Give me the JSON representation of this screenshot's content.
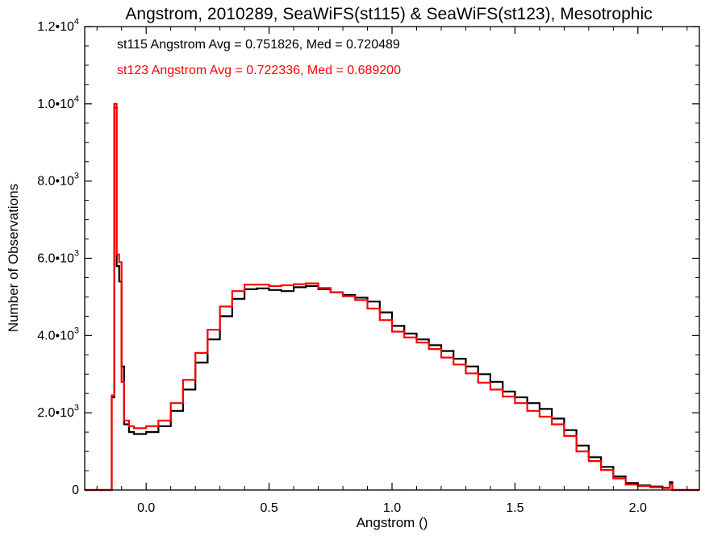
{
  "chart_data": {
    "type": "line",
    "step": true,
    "title": "Angstrom, 2010289, SeaWiFS(st115) & SeaWiFS(st123), Mesotrophic",
    "xlabel": "Angstrom ()",
    "ylabel": "Number of Observations",
    "xlim": [
      -0.25,
      2.25
    ],
    "ylim": [
      0,
      12000
    ],
    "grid": false,
    "x_ticks": [
      {
        "value": 0.0,
        "label": "0.0"
      },
      {
        "value": 0.5,
        "label": "0.5"
      },
      {
        "value": 1.0,
        "label": "1.0"
      },
      {
        "value": 1.5,
        "label": "1.5"
      },
      {
        "value": 2.0,
        "label": "2.0"
      }
    ],
    "y_ticks": [
      {
        "value": 0,
        "mantissa": "0",
        "exp": ""
      },
      {
        "value": 2000,
        "mantissa": "2.0•10",
        "exp": "3"
      },
      {
        "value": 4000,
        "mantissa": "4.0•10",
        "exp": "3"
      },
      {
        "value": 6000,
        "mantissa": "6.0•10",
        "exp": "3"
      },
      {
        "value": 8000,
        "mantissa": "8.0•10",
        "exp": "3"
      },
      {
        "value": 10000,
        "mantissa": "1.0•10",
        "exp": "4"
      },
      {
        "value": 12000,
        "mantissa": "1.2•10",
        "exp": "4"
      }
    ],
    "annotations": [
      {
        "text": "st115 Angstrom Avg = 0.751826, Med = 0.720489",
        "color": "#000000"
      },
      {
        "text": "st123 Angstrom Avg = 0.722336, Med = 0.689200",
        "color": "#ff0000"
      }
    ],
    "series": [
      {
        "color": "#000000",
        "points": [
          [
            -0.25,
            0
          ],
          [
            -0.15,
            0
          ],
          [
            -0.14,
            2400
          ],
          [
            -0.13,
            9900
          ],
          [
            -0.12,
            5800
          ],
          [
            -0.11,
            5400
          ],
          [
            -0.1,
            3200
          ],
          [
            -0.09,
            1700
          ],
          [
            -0.07,
            1500
          ],
          [
            -0.05,
            1450
          ],
          [
            0.0,
            1500
          ],
          [
            0.05,
            1650
          ],
          [
            0.1,
            2050
          ],
          [
            0.15,
            2600
          ],
          [
            0.2,
            3300
          ],
          [
            0.25,
            3900
          ],
          [
            0.3,
            4500
          ],
          [
            0.35,
            4950
          ],
          [
            0.4,
            5200
          ],
          [
            0.45,
            5220
          ],
          [
            0.5,
            5180
          ],
          [
            0.55,
            5150
          ],
          [
            0.6,
            5250
          ],
          [
            0.65,
            5280
          ],
          [
            0.7,
            5200
          ],
          [
            0.75,
            5120
          ],
          [
            0.8,
            5050
          ],
          [
            0.85,
            4980
          ],
          [
            0.9,
            4880
          ],
          [
            0.95,
            4600
          ],
          [
            1.0,
            4250
          ],
          [
            1.05,
            4050
          ],
          [
            1.1,
            3900
          ],
          [
            1.15,
            3750
          ],
          [
            1.2,
            3600
          ],
          [
            1.25,
            3400
          ],
          [
            1.3,
            3200
          ],
          [
            1.35,
            3000
          ],
          [
            1.4,
            2800
          ],
          [
            1.45,
            2550
          ],
          [
            1.5,
            2400
          ],
          [
            1.55,
            2250
          ],
          [
            1.6,
            2100
          ],
          [
            1.65,
            1850
          ],
          [
            1.7,
            1550
          ],
          [
            1.75,
            1150
          ],
          [
            1.8,
            850
          ],
          [
            1.85,
            600
          ],
          [
            1.9,
            350
          ],
          [
            1.95,
            180
          ],
          [
            2.0,
            120
          ],
          [
            2.05,
            90
          ],
          [
            2.1,
            60
          ],
          [
            2.13,
            200
          ],
          [
            2.14,
            0
          ],
          [
            2.25,
            0
          ]
        ]
      },
      {
        "color": "#ff0000",
        "points": [
          [
            -0.25,
            0
          ],
          [
            -0.15,
            0
          ],
          [
            -0.14,
            2450
          ],
          [
            -0.13,
            10000
          ],
          [
            -0.12,
            6100
          ],
          [
            -0.11,
            5900
          ],
          [
            -0.1,
            2800
          ],
          [
            -0.09,
            1800
          ],
          [
            -0.07,
            1650
          ],
          [
            -0.05,
            1600
          ],
          [
            0.0,
            1650
          ],
          [
            0.05,
            1800
          ],
          [
            0.1,
            2250
          ],
          [
            0.15,
            2850
          ],
          [
            0.2,
            3550
          ],
          [
            0.25,
            4150
          ],
          [
            0.3,
            4750
          ],
          [
            0.35,
            5150
          ],
          [
            0.4,
            5320
          ],
          [
            0.45,
            5320
          ],
          [
            0.5,
            5280
          ],
          [
            0.55,
            5300
          ],
          [
            0.6,
            5330
          ],
          [
            0.65,
            5350
          ],
          [
            0.7,
            5230
          ],
          [
            0.75,
            5120
          ],
          [
            0.8,
            5020
          ],
          [
            0.85,
            4920
          ],
          [
            0.9,
            4700
          ],
          [
            0.95,
            4400
          ],
          [
            1.0,
            4100
          ],
          [
            1.05,
            3950
          ],
          [
            1.1,
            3820
          ],
          [
            1.15,
            3650
          ],
          [
            1.2,
            3430
          ],
          [
            1.25,
            3250
          ],
          [
            1.3,
            3020
          ],
          [
            1.35,
            2780
          ],
          [
            1.4,
            2600
          ],
          [
            1.45,
            2420
          ],
          [
            1.5,
            2250
          ],
          [
            1.55,
            2050
          ],
          [
            1.6,
            1900
          ],
          [
            1.65,
            1700
          ],
          [
            1.7,
            1400
          ],
          [
            1.75,
            1000
          ],
          [
            1.8,
            750
          ],
          [
            1.85,
            520
          ],
          [
            1.9,
            300
          ],
          [
            1.95,
            140
          ],
          [
            2.0,
            100
          ],
          [
            2.05,
            70
          ],
          [
            2.1,
            50
          ],
          [
            2.13,
            150
          ],
          [
            2.14,
            0
          ],
          [
            2.25,
            0
          ]
        ]
      }
    ]
  }
}
